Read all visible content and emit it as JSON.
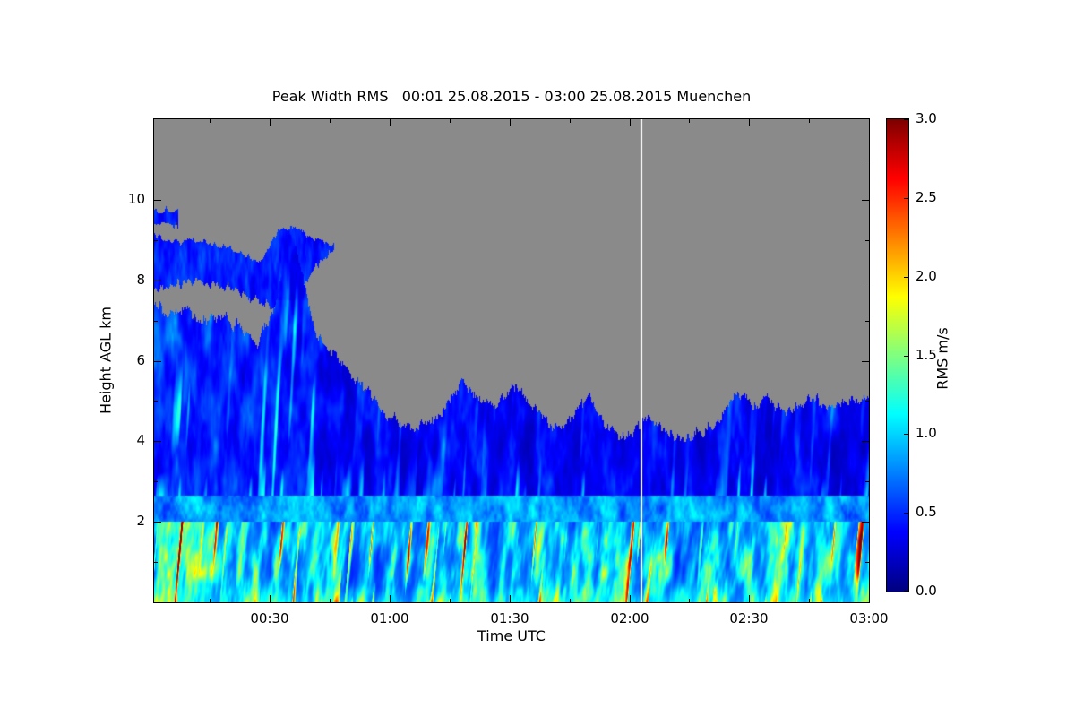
{
  "page": {
    "background": "#ffffff"
  },
  "chart_data": {
    "type": "heatmap",
    "title": "Peak Width RMS   00:01 25.08.2015 - 03:00 25.08.2015 Muenchen",
    "xlabel": "Time UTC",
    "ylabel": "Height AGL km",
    "colorbar_label": "RMS m/s",
    "x_tick_labels": [
      "00:30",
      "01:00",
      "01:30",
      "02:00",
      "02:30",
      "03:00"
    ],
    "x_tick_minutes": [
      30,
      60,
      90,
      120,
      150,
      180
    ],
    "x_minor_tick_minutes": [
      15,
      45,
      75,
      105,
      135,
      165
    ],
    "x_range_minutes": [
      1,
      180
    ],
    "y_tick_labels": [
      "2",
      "4",
      "6",
      "8",
      "10"
    ],
    "y_tick_values": [
      2,
      4,
      6,
      8,
      10
    ],
    "y_minor_tick_values": [
      1,
      3,
      5,
      7,
      9,
      11
    ],
    "y_range_km": [
      0,
      12
    ],
    "value_range": [
      0,
      3
    ],
    "colorbar_tick_labels": [
      "0.0",
      "0.5",
      "1.0",
      "1.5",
      "2.0",
      "2.5",
      "3.0"
    ],
    "colorbar_tick_values": [
      0,
      0.5,
      1,
      1.5,
      2,
      2.5,
      3
    ],
    "colormap": "jet",
    "colormap_stops": [
      "#000080",
      "#0000ff",
      "#00ffff",
      "#7dff7d",
      "#ffff00",
      "#ff0000",
      "#800000"
    ],
    "no_data_color": "#8a8a8a",
    "gap_line": {
      "minute": 123,
      "color": "#ffffff"
    },
    "layers": {
      "boundary_layer_top_km": 2.0,
      "transition_layer_top_km": 2.65
    },
    "echo_top_profile": {
      "t_min": [
        0,
        3,
        6,
        9,
        12,
        15,
        18,
        21,
        24,
        27,
        30,
        32,
        34,
        35,
        36,
        38,
        40,
        42,
        45,
        48,
        51,
        54,
        57,
        60,
        63,
        66,
        69,
        72,
        75,
        78,
        80,
        83,
        86,
        89,
        92,
        95,
        98,
        101,
        104,
        107,
        110,
        112,
        115,
        118,
        121,
        124,
        127,
        130,
        133,
        136,
        139,
        142,
        145,
        148,
        151,
        154,
        157,
        160,
        163,
        166,
        169,
        172,
        175,
        178,
        180
      ],
      "height_km": [
        7.4,
        7.3,
        7.2,
        7.3,
        7.1,
        7.0,
        7.1,
        6.9,
        6.7,
        6.5,
        7.0,
        7.6,
        8.9,
        9.2,
        9.0,
        8.2,
        7.2,
        6.6,
        6.3,
        5.9,
        5.6,
        5.3,
        4.9,
        4.6,
        4.4,
        4.3,
        4.5,
        4.6,
        5.0,
        5.5,
        5.3,
        5.0,
        4.8,
        5.2,
        5.4,
        5.0,
        4.6,
        4.4,
        4.4,
        4.8,
        5.2,
        4.7,
        4.3,
        4.1,
        4.2,
        4.6,
        4.4,
        4.2,
        4.0,
        4.1,
        4.3,
        4.4,
        5.0,
        5.2,
        4.8,
        5.1,
        4.9,
        4.7,
        4.9,
        5.1,
        4.9,
        4.9,
        5.1,
        5.0,
        5.1
      ]
    },
    "cloud_band": {
      "t_min": [
        0,
        4,
        8,
        12,
        16,
        20,
        24,
        28,
        32,
        36,
        40,
        44,
        46
      ],
      "base_km": [
        7.8,
        7.85,
        7.9,
        8.0,
        7.9,
        7.8,
        7.6,
        7.5,
        7.2,
        7.0,
        8.2,
        8.6,
        8.8
      ],
      "top_km": [
        9.2,
        9.0,
        8.95,
        9.0,
        8.9,
        8.8,
        8.6,
        8.5,
        9.3,
        9.3,
        9.1,
        9.0,
        8.9
      ]
    },
    "cloud_blob": {
      "t_range_min": [
        1,
        7
      ],
      "base_km": 9.35,
      "top_km": 9.75
    }
  }
}
